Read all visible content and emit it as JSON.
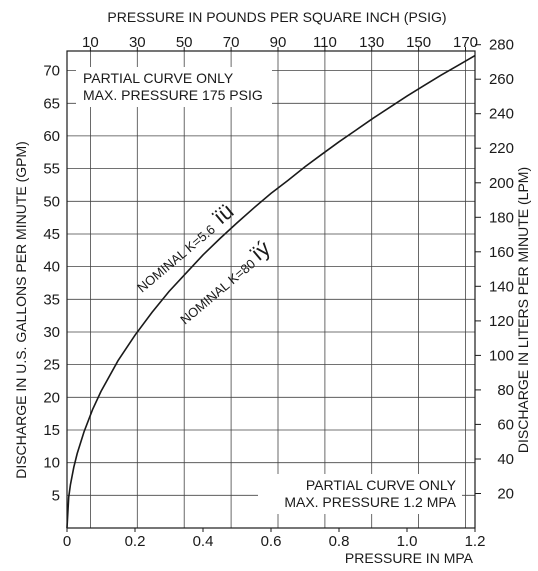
{
  "chart_data": {
    "type": "line",
    "title": "",
    "x_top_label": "PRESSURE IN POUNDS PER SQUARE INCH (PSIG)",
    "x_top_ticks": [
      "10",
      "30",
      "50",
      "70",
      "90",
      "110",
      "130",
      "150",
      "170"
    ],
    "x_top_tick_values": [
      10,
      30,
      50,
      70,
      90,
      110,
      130,
      150,
      170
    ],
    "xlabel": "PRESSURE IN MPA",
    "x_ticks": [
      "0",
      "0.2",
      "0.4",
      "0.6",
      "0.8",
      "1.0",
      "1.2"
    ],
    "x_tick_values": [
      0,
      0.2,
      0.4,
      0.6,
      0.8,
      1.0,
      1.2
    ],
    "xlim": [
      0,
      1.2
    ],
    "ylabel": "DISCHARGE IN U.S. GALLONS PER MINUTE (GPM)",
    "y_ticks": [
      "5",
      "10",
      "15",
      "20",
      "25",
      "30",
      "35",
      "40",
      "45",
      "50",
      "55",
      "60",
      "65",
      "70"
    ],
    "y_tick_values": [
      5,
      10,
      15,
      20,
      25,
      30,
      35,
      40,
      45,
      50,
      55,
      60,
      65,
      70
    ],
    "ylim": [
      0,
      73
    ],
    "y2label": "DISCHARGE IN LITERS PER MINUTE (LPM)",
    "y2_ticks": [
      "20",
      "40",
      "60",
      "80",
      "100",
      "120",
      "140",
      "160",
      "180",
      "200",
      "220",
      "240",
      "260",
      "280"
    ],
    "y2_tick_values": [
      20,
      40,
      60,
      80,
      100,
      120,
      140,
      160,
      180,
      200,
      220,
      240,
      260,
      280
    ],
    "grid": true,
    "series": [
      {
        "x": [
          0,
          0.005,
          0.01,
          0.02,
          0.03,
          0.05,
          0.075,
          0.1,
          0.15,
          0.2,
          0.25,
          0.3,
          0.35,
          0.4,
          0.45,
          0.5,
          0.55,
          0.6,
          0.65,
          0.7,
          0.75,
          0.8,
          0.85,
          0.9,
          0.95,
          1.0,
          1.05,
          1.1,
          1.15,
          1.2
        ],
        "y": [
          0,
          4.7,
          6.6,
          9.3,
          11.4,
          14.7,
          18.1,
          20.9,
          25.6,
          29.5,
          33.0,
          36.2,
          39.0,
          41.8,
          44.3,
          46.7,
          49.0,
          51.2,
          53.2,
          55.3,
          57.2,
          59.1,
          60.9,
          62.7,
          64.4,
          66.1,
          67.7,
          69.3,
          70.8,
          72.3
        ]
      }
    ],
    "annotations": {
      "top_note_line1": "PARTIAL CURVE ONLY",
      "top_note_line2": "MAX. PRESSURE 175 PSIG",
      "bottom_note_line1": "PARTIAL CURVE ONLY",
      "bottom_note_line2": "MAX. PRESSURE 1.2 MPA",
      "curve_label_1": "NOMINAL K=5.6",
      "curve_mark_1": "ïü",
      "curve_label_2": "NOMINAL K=80",
      "curve_mark_2": "ïý"
    }
  }
}
